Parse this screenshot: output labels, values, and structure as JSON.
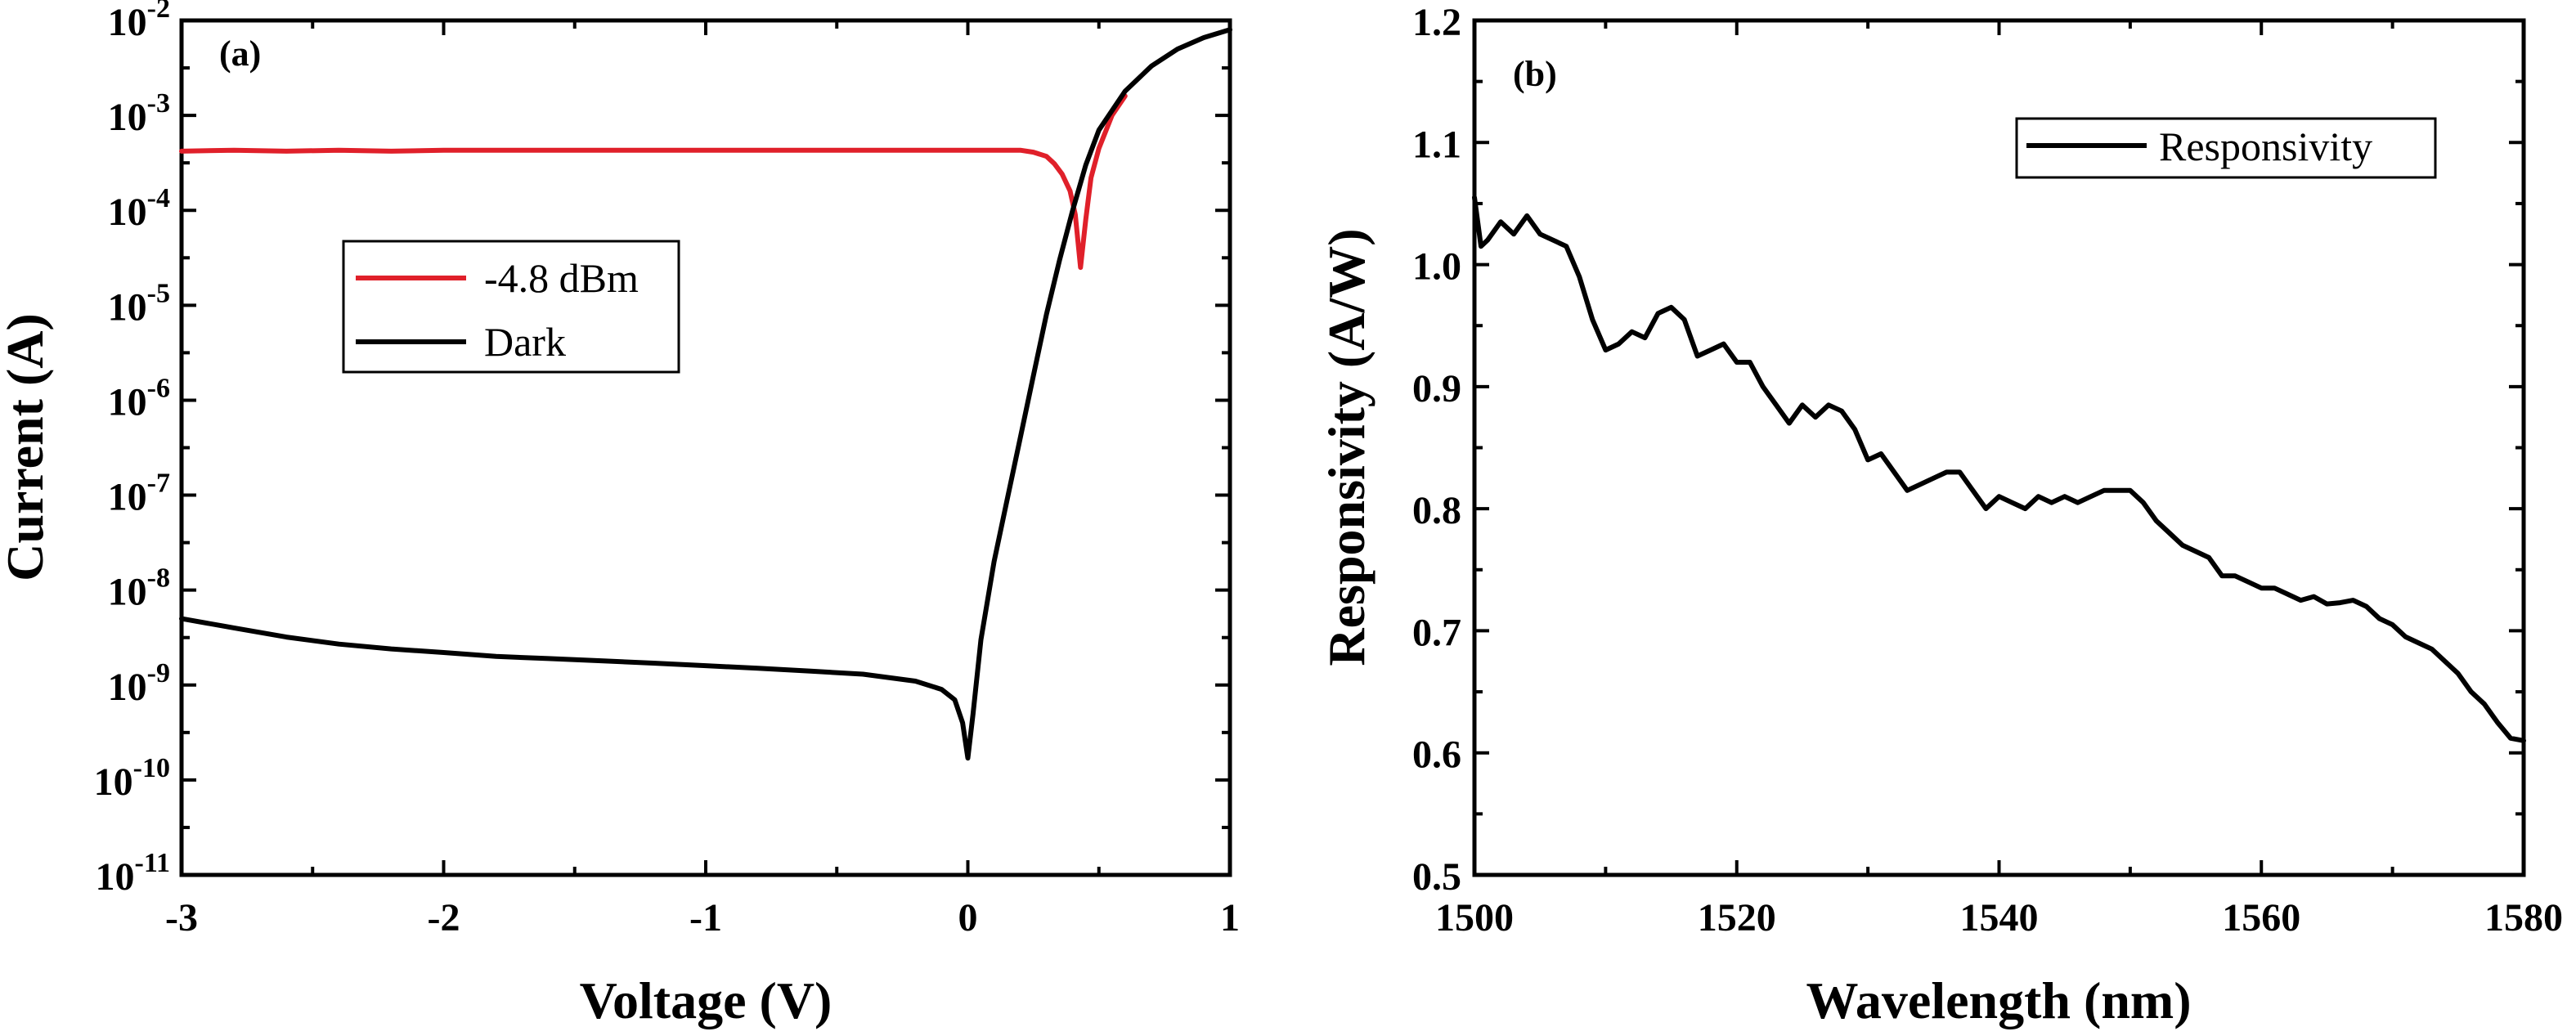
{
  "chart_data": [
    {
      "type": "line",
      "panel_label": "(a)",
      "xlabel": "Voltage (V)",
      "ylabel": "Current (A)",
      "x_scale": "linear",
      "y_scale": "log",
      "xlim": [
        -3,
        1
      ],
      "ylim": [
        1e-11,
        0.01
      ],
      "x_ticks": [
        -3,
        -2,
        -1,
        0,
        1
      ],
      "x_tick_labels": [
        "-3",
        "-2",
        "-1",
        "0",
        "1"
      ],
      "y_ticks": [
        {
          "value": 1e-11,
          "base": "10",
          "exp": "-11"
        },
        {
          "value": 1e-10,
          "base": "10",
          "exp": "-10"
        },
        {
          "value": 1e-09,
          "base": "10",
          "exp": "-9"
        },
        {
          "value": 1e-08,
          "base": "10",
          "exp": "-8"
        },
        {
          "value": 1e-07,
          "base": "10",
          "exp": "-7"
        },
        {
          "value": 1e-06,
          "base": "10",
          "exp": "-6"
        },
        {
          "value": 1e-05,
          "base": "10",
          "exp": "-5"
        },
        {
          "value": 0.0001,
          "base": "10",
          "exp": "-4"
        },
        {
          "value": 0.001,
          "base": "10",
          "exp": "-3"
        },
        {
          "value": 0.01,
          "base": "10",
          "exp": "-2"
        }
      ],
      "legend_position": "center-left",
      "grid": false,
      "series": [
        {
          "name": "-4.8 dBm",
          "color": "#e0202a",
          "x": [
            -3.0,
            -2.8,
            -2.6,
            -2.4,
            -2.2,
            -2.0,
            -1.8,
            -1.6,
            -1.4,
            -1.2,
            -1.0,
            -0.8,
            -0.6,
            -0.4,
            -0.2,
            0.0,
            0.1,
            0.2,
            0.25,
            0.3,
            0.33,
            0.36,
            0.39,
            0.41,
            0.43,
            0.45,
            0.47,
            0.5,
            0.55,
            0.6
          ],
          "y": [
            0.00042,
            0.00043,
            0.00042,
            0.00043,
            0.00042,
            0.00043,
            0.00043,
            0.00043,
            0.00043,
            0.00043,
            0.00043,
            0.00043,
            0.00043,
            0.00043,
            0.00043,
            0.00043,
            0.00043,
            0.00043,
            0.00041,
            0.00037,
            0.00031,
            0.00024,
            0.00016,
            9e-05,
            2.5e-05,
            8e-05,
            0.00022,
            0.00045,
            0.001,
            0.0016
          ]
        },
        {
          "name": "Dark",
          "color": "#000000",
          "x": [
            -3.0,
            -2.8,
            -2.6,
            -2.4,
            -2.2,
            -2.0,
            -1.8,
            -1.6,
            -1.4,
            -1.2,
            -1.0,
            -0.8,
            -0.6,
            -0.4,
            -0.2,
            -0.1,
            -0.05,
            -0.02,
            0.0,
            0.02,
            0.05,
            0.1,
            0.15,
            0.2,
            0.25,
            0.3,
            0.35,
            0.4,
            0.45,
            0.5,
            0.6,
            0.7,
            0.8,
            0.9,
            1.0
          ],
          "y": [
            5e-09,
            4e-09,
            3.2e-09,
            2.7e-09,
            2.4e-09,
            2.2e-09,
            2e-09,
            1.9e-09,
            1.8e-09,
            1.7e-09,
            1.6e-09,
            1.5e-09,
            1.4e-09,
            1.3e-09,
            1.1e-09,
            9e-10,
            7e-10,
            4e-10,
            1.7e-10,
            5e-10,
            3e-09,
            2e-08,
            9e-08,
            4e-07,
            1.8e-06,
            8e-06,
            3e-05,
            0.0001,
            0.0003,
            0.0007,
            0.0018,
            0.0033,
            0.005,
            0.0066,
            0.008
          ]
        }
      ]
    },
    {
      "type": "line",
      "panel_label": "(b)",
      "xlabel": "Wavelength (nm)",
      "ylabel": "Responsivity (A/W)",
      "x_scale": "linear",
      "y_scale": "linear",
      "xlim": [
        1500,
        1580
      ],
      "ylim": [
        0.5,
        1.2
      ],
      "x_ticks": [
        1500,
        1520,
        1540,
        1560,
        1580
      ],
      "x_tick_labels": [
        "1500",
        "1520",
        "1540",
        "1560",
        "1580"
      ],
      "y_ticks": [
        0.5,
        0.6,
        0.7,
        0.8,
        0.9,
        1.0,
        1.1,
        1.2
      ],
      "y_tick_labels": [
        "0.5",
        "0.6",
        "0.7",
        "0.8",
        "0.9",
        "1.0",
        "1.1",
        "1.2"
      ],
      "legend_position": "top-right",
      "grid": false,
      "series": [
        {
          "name": "Responsivity",
          "color": "#000000",
          "x": [
            1500,
            1500.5,
            1501,
            1502,
            1503,
            1504,
            1505,
            1506,
            1507,
            1508,
            1509,
            1510,
            1511,
            1512,
            1513,
            1514,
            1515,
            1516,
            1517,
            1518,
            1519,
            1520,
            1521,
            1522,
            1523,
            1524,
            1525,
            1526,
            1527,
            1528,
            1529,
            1530,
            1531,
            1532,
            1533,
            1534,
            1535,
            1536,
            1537,
            1538,
            1539,
            1540,
            1541,
            1542,
            1543,
            1544,
            1545,
            1546,
            1547,
            1548,
            1549,
            1550,
            1551,
            1552,
            1553,
            1554,
            1555,
            1556,
            1557,
            1558,
            1559,
            1560,
            1561,
            1562,
            1563,
            1564,
            1565,
            1566,
            1567,
            1568,
            1569,
            1570,
            1571,
            1572,
            1573,
            1574,
            1575,
            1576,
            1577,
            1578,
            1579,
            1580
          ],
          "y": [
            1.055,
            1.015,
            1.02,
            1.035,
            1.025,
            1.04,
            1.025,
            1.02,
            1.015,
            0.99,
            0.955,
            0.93,
            0.935,
            0.945,
            0.94,
            0.96,
            0.965,
            0.955,
            0.925,
            0.93,
            0.935,
            0.92,
            0.92,
            0.9,
            0.885,
            0.87,
            0.885,
            0.875,
            0.885,
            0.88,
            0.865,
            0.84,
            0.845,
            0.83,
            0.815,
            0.82,
            0.825,
            0.83,
            0.83,
            0.815,
            0.8,
            0.81,
            0.805,
            0.8,
            0.81,
            0.805,
            0.81,
            0.805,
            0.81,
            0.815,
            0.815,
            0.815,
            0.805,
            0.79,
            0.78,
            0.77,
            0.765,
            0.76,
            0.745,
            0.745,
            0.74,
            0.735,
            0.735,
            0.73,
            0.725,
            0.728,
            0.722,
            0.723,
            0.725,
            0.72,
            0.71,
            0.705,
            0.695,
            0.69,
            0.685,
            0.675,
            0.665,
            0.65,
            0.64,
            0.625,
            0.612,
            0.61
          ]
        }
      ]
    }
  ]
}
